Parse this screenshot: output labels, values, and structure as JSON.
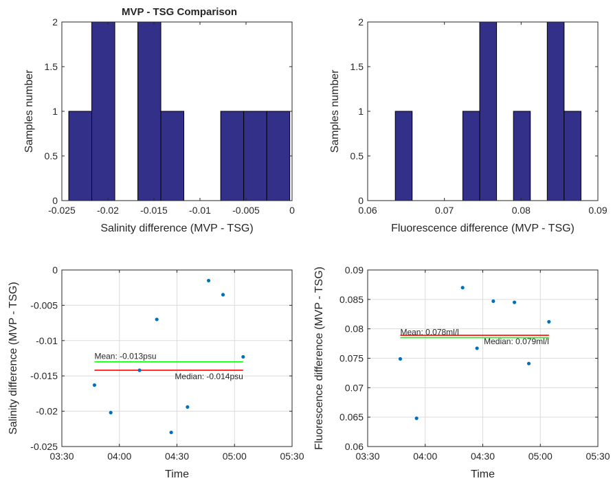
{
  "figure": {
    "title": "MVP - TSG Comparison",
    "bar_color": "#33308a",
    "line_color": "#0072bd"
  },
  "chart_data": [
    {
      "id": "hist_salinity",
      "type": "bar",
      "title": "MVP - TSG Comparison",
      "xlabel": "Salinity difference (MVP - TSG)",
      "ylabel": "Samples number",
      "xlim": [
        -0.025,
        0
      ],
      "ylim": [
        0,
        2
      ],
      "xticks": [
        -0.025,
        -0.02,
        -0.015,
        -0.01,
        -0.005,
        0
      ],
      "xtick_labels": [
        "-0.025",
        "-0.02",
        "-0.015",
        "-0.01",
        "-0.005",
        "0"
      ],
      "yticks": [
        0,
        0.5,
        1,
        1.5,
        2
      ],
      "ytick_labels": [
        "0",
        "0.5",
        "1",
        "1.5",
        "2"
      ],
      "grid": false,
      "bin_width": 0.0025,
      "bins": [
        {
          "x0": -0.02425,
          "count": 1
        },
        {
          "x0": -0.02175,
          "count": 2
        },
        {
          "x0": -0.01925,
          "count": 0
        },
        {
          "x0": -0.01675,
          "count": 2
        },
        {
          "x0": -0.01425,
          "count": 1
        },
        {
          "x0": -0.01175,
          "count": 0
        },
        {
          "x0": -0.00925,
          "count": 0
        },
        {
          "x0": -0.00775,
          "count": 1
        },
        {
          "x0": -0.00525,
          "count": 1
        },
        {
          "x0": -0.00275,
          "count": 1
        }
      ]
    },
    {
      "id": "hist_fluorescence",
      "type": "bar",
      "title": "",
      "xlabel": "Fluorescence difference (MVP - TSG)",
      "ylabel": "Samples number",
      "xlim": [
        0.06,
        0.09
      ],
      "ylim": [
        0,
        2
      ],
      "xticks": [
        0.06,
        0.07,
        0.08,
        0.09
      ],
      "xtick_labels": [
        "0.06",
        "0.07",
        "0.08",
        "0.09"
      ],
      "yticks": [
        0,
        0.5,
        1,
        1.5,
        2
      ],
      "ytick_labels": [
        "0",
        "0.5",
        "1",
        "1.5",
        "2"
      ],
      "grid": false,
      "bin_width": 0.0022,
      "bins": [
        {
          "x0": 0.0636,
          "count": 1
        },
        {
          "x0": 0.0658,
          "count": 0
        },
        {
          "x0": 0.068,
          "count": 0
        },
        {
          "x0": 0.0702,
          "count": 0
        },
        {
          "x0": 0.0724,
          "count": 1
        },
        {
          "x0": 0.0746,
          "count": 2
        },
        {
          "x0": 0.0768,
          "count": 0
        },
        {
          "x0": 0.079,
          "count": 1
        },
        {
          "x0": 0.0812,
          "count": 0
        },
        {
          "x0": 0.0834,
          "count": 2
        },
        {
          "x0": 0.0856,
          "count": 1
        }
      ]
    },
    {
      "id": "scatter_salinity",
      "type": "scatter",
      "title": "",
      "xlabel": "Time",
      "ylabel": "Salinity difference (MVP - TSG)",
      "xlim": [
        210,
        330
      ],
      "ylim": [
        -0.025,
        0
      ],
      "xticks": [
        210,
        240,
        270,
        300,
        330
      ],
      "xtick_labels": [
        "03:30",
        "04:00",
        "04:30",
        "05:00",
        "05:30"
      ],
      "yticks": [
        -0.025,
        -0.02,
        -0.015,
        -0.01,
        -0.005,
        0
      ],
      "ytick_labels": [
        "-0.025",
        "-0.02",
        "-0.015",
        "-0.01",
        "-0.005",
        "0"
      ],
      "grid": true,
      "points": [
        {
          "x": 227.0,
          "y": -0.0163
        },
        {
          "x": 235.5,
          "y": -0.0202
        },
        {
          "x": 250.5,
          "y": -0.0142
        },
        {
          "x": 259.5,
          "y": -0.007
        },
        {
          "x": 267.0,
          "y": -0.023
        },
        {
          "x": 275.5,
          "y": -0.0194
        },
        {
          "x": 286.5,
          "y": -0.0015
        },
        {
          "x": 294.0,
          "y": -0.0035
        },
        {
          "x": 304.5,
          "y": -0.0123
        }
      ],
      "lines": [
        {
          "label": "Mean: -0.013psu",
          "value": -0.013,
          "x_from": 227.0,
          "x_to": 304.5,
          "color": "#00ff00",
          "label_x": 227.0,
          "label_anchor": "start",
          "label_side": "above"
        },
        {
          "label": "Median: -0.014psu",
          "value": -0.0142,
          "x_from": 227.0,
          "x_to": 304.5,
          "color": "#ff0000",
          "label_x": 304.5,
          "label_anchor": "end",
          "label_side": "below"
        }
      ]
    },
    {
      "id": "scatter_fluorescence",
      "type": "scatter",
      "title": "",
      "xlabel": "Time",
      "ylabel": "Fluorescence difference (MVP - TSG)",
      "xlim": [
        210,
        330
      ],
      "ylim": [
        0.06,
        0.09
      ],
      "xticks": [
        210,
        240,
        270,
        300,
        330
      ],
      "xtick_labels": [
        "03:30",
        "04:00",
        "04:30",
        "05:00",
        "05:30"
      ],
      "yticks": [
        0.06,
        0.065,
        0.07,
        0.075,
        0.08,
        0.085,
        0.09
      ],
      "ytick_labels": [
        "0.06",
        "0.065",
        "0.07",
        "0.075",
        "0.08",
        "0.085",
        "0.09"
      ],
      "grid": true,
      "points": [
        {
          "x": 227.0,
          "y": 0.0749
        },
        {
          "x": 235.5,
          "y": 0.0648
        },
        {
          "x": 259.5,
          "y": 0.087
        },
        {
          "x": 267.0,
          "y": 0.0767
        },
        {
          "x": 275.5,
          "y": 0.0847
        },
        {
          "x": 286.5,
          "y": 0.0845
        },
        {
          "x": 294.0,
          "y": 0.0741
        },
        {
          "x": 304.5,
          "y": 0.0812
        }
      ],
      "lines": [
        {
          "label": "Mean: 0.078ml/l",
          "value": 0.0785,
          "x_from": 227.0,
          "x_to": 304.5,
          "color": "#00ff00",
          "label_x": 227.0,
          "label_anchor": "start",
          "label_side": "above"
        },
        {
          "label": "Median: 0.079ml/l",
          "value": 0.0789,
          "x_from": 227.0,
          "x_to": 304.5,
          "color": "#ff0000",
          "label_x": 304.5,
          "label_anchor": "end",
          "label_side": "below"
        }
      ]
    }
  ]
}
